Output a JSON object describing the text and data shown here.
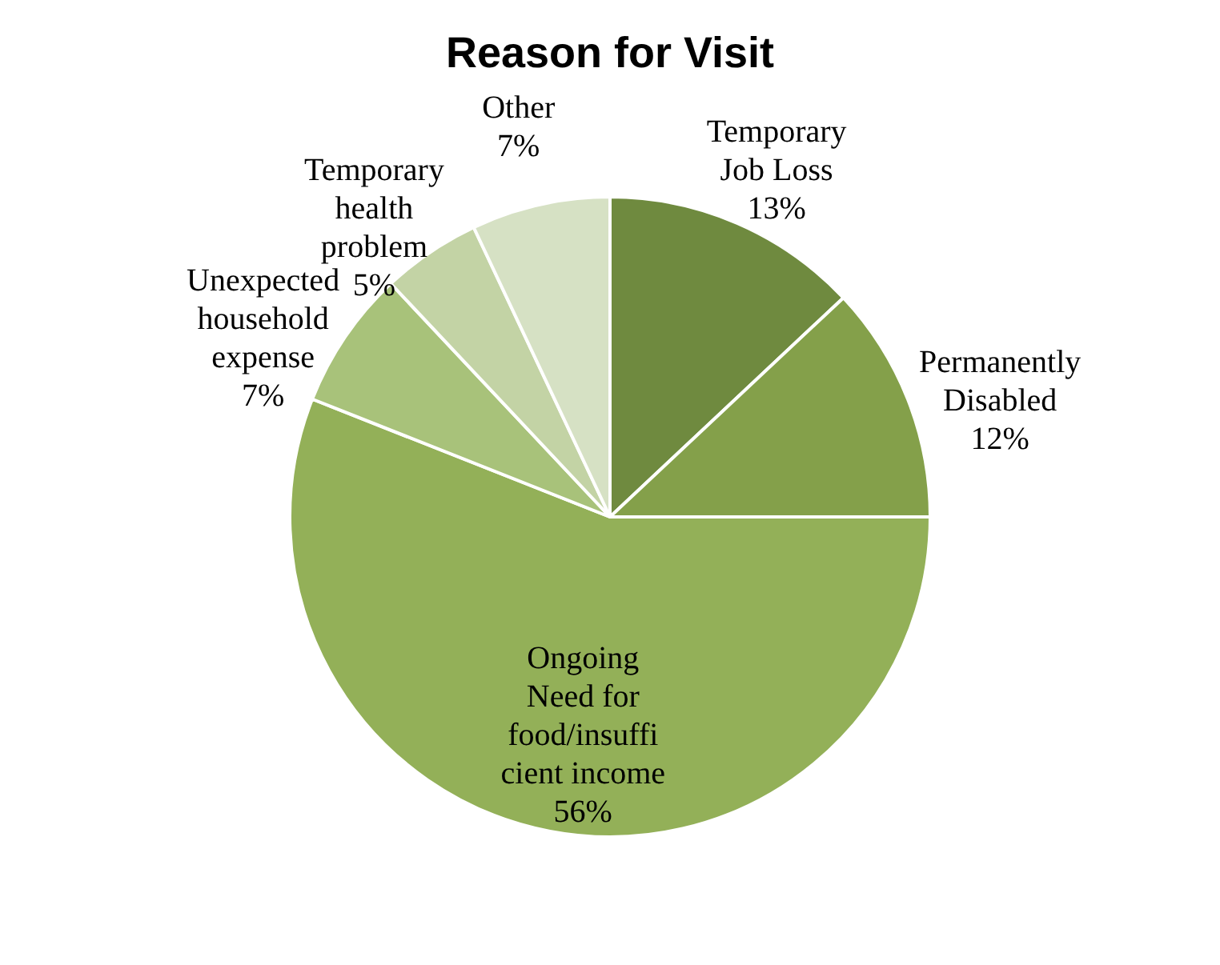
{
  "chart_data": {
    "type": "pie",
    "title": "Reason for Visit",
    "categories": [
      "Temporary\nJob Loss",
      "Permanently\nDisabled",
      "Ongoing\nNeed for\nfood/insuffi\ncient income",
      "Unexpected\nhousehold\nexpense",
      "Temporary\nhealth\nproblem",
      "Other"
    ],
    "values": [
      13,
      12,
      56,
      7,
      5,
      7
    ],
    "value_labels": [
      "13%",
      "12%",
      "56%",
      "7%",
      "5%",
      "7%"
    ],
    "colors": [
      "#6f8a3f",
      "#84a04a",
      "#93b058",
      "#a8c27a",
      "#c3d3a5",
      "#d6e1c4"
    ],
    "legend": false
  }
}
